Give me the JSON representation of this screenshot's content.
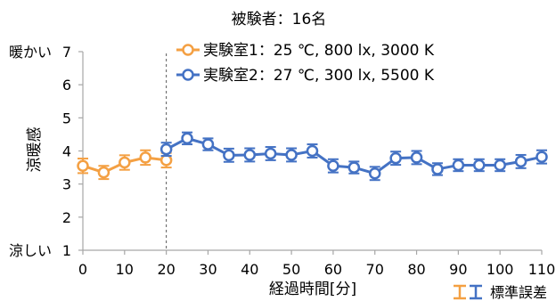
{
  "chart_data": {
    "type": "line",
    "title": "被験者：16名",
    "xlabel": "経過時間[分]",
    "ylabel": "涼暖感",
    "xlim": [
      0,
      110
    ],
    "ylim": [
      1,
      7
    ],
    "xticks": [
      0,
      10,
      20,
      30,
      40,
      50,
      60,
      70,
      80,
      90,
      100,
      110
    ],
    "yticks": [
      1,
      2,
      3,
      4,
      5,
      6,
      7
    ],
    "y_top_label": "暖かい",
    "y_bottom_label": "涼しい",
    "divider_x": 20,
    "series": [
      {
        "name": "実験室1：25 ℃, 800 lx, 3000 K",
        "color": "#F4A043",
        "x": [
          0,
          5,
          10,
          15,
          20
        ],
        "y": [
          3.55,
          3.35,
          3.65,
          3.8,
          3.72
        ],
        "err": [
          0.22,
          0.2,
          0.22,
          0.22,
          0.22
        ]
      },
      {
        "name": "実験室2：27 ℃, 300 lx, 5500 K",
        "color": "#4472C4",
        "x": [
          20,
          25,
          30,
          35,
          40,
          45,
          50,
          55,
          60,
          65,
          70,
          75,
          80,
          85,
          90,
          95,
          100,
          105,
          110
        ],
        "y": [
          4.05,
          4.38,
          4.2,
          3.87,
          3.88,
          3.92,
          3.88,
          4.0,
          3.55,
          3.5,
          3.32,
          3.78,
          3.8,
          3.45,
          3.57,
          3.57,
          3.57,
          3.68,
          3.82
        ],
        "err": [
          0.2,
          0.18,
          0.18,
          0.2,
          0.2,
          0.2,
          0.2,
          0.2,
          0.2,
          0.18,
          0.2,
          0.2,
          0.2,
          0.18,
          0.18,
          0.18,
          0.18,
          0.2,
          0.2
        ]
      }
    ],
    "error_legend_label": "標準誤差",
    "legend_position": "top-center"
  }
}
